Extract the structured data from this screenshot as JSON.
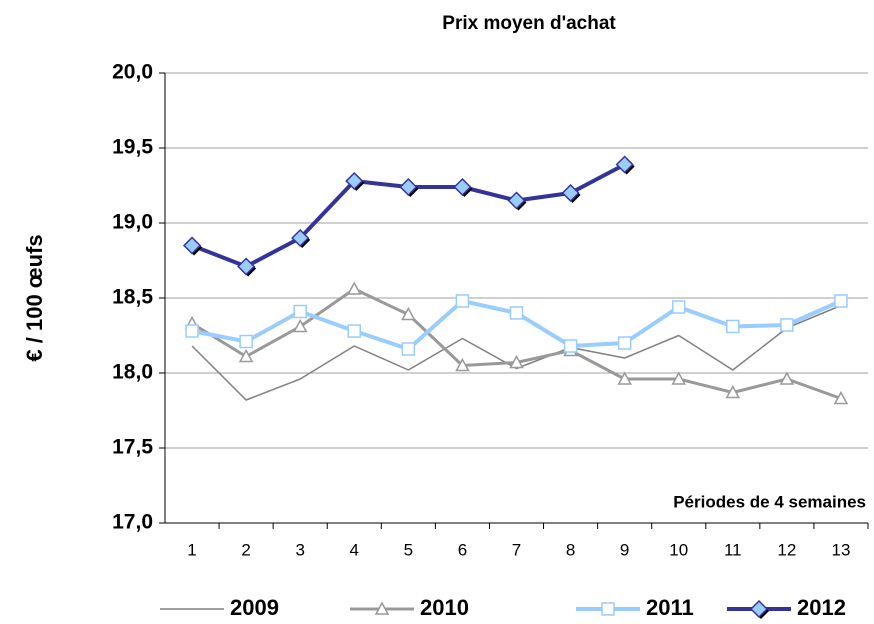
{
  "chart_data": {
    "type": "line",
    "title": "Prix moyen d'achat",
    "y_label": "€ / 100 œufs",
    "annotation": "Périodes de 4 semaines",
    "categories": [
      "1",
      "2",
      "3",
      "4",
      "5",
      "6",
      "7",
      "8",
      "9",
      "10",
      "11",
      "12",
      "13"
    ],
    "series": [
      {
        "name": "2009",
        "color": "#808080",
        "width": 1.5,
        "marker": "none",
        "values": [
          18.18,
          17.82,
          17.96,
          18.18,
          18.02,
          18.23,
          18.03,
          18.17,
          18.1,
          18.25,
          18.02,
          18.3,
          18.45
        ]
      },
      {
        "name": "2010",
        "color": "#999999",
        "width": 3,
        "marker": "triangle",
        "values": [
          18.33,
          18.11,
          18.31,
          18.56,
          18.39,
          18.05,
          18.07,
          18.15,
          17.96,
          17.96,
          17.87,
          17.96,
          17.83
        ]
      },
      {
        "name": "2011",
        "color": "#99ccff",
        "width": 4,
        "marker": "square",
        "values": [
          18.28,
          18.21,
          18.41,
          18.28,
          18.16,
          18.48,
          18.4,
          18.18,
          18.2,
          18.44,
          18.31,
          18.32,
          18.48
        ]
      },
      {
        "name": "2012",
        "color": "#333399",
        "width": 4,
        "marker": "diamond",
        "values": [
          18.85,
          18.71,
          18.9,
          19.28,
          19.24,
          19.24,
          19.15,
          19.2,
          19.39,
          null,
          null,
          null,
          null
        ]
      }
    ],
    "ylim": [
      17.0,
      20.0
    ],
    "yticks": [
      {
        "value": 17.0,
        "label": "17,0"
      },
      {
        "value": 17.5,
        "label": "17,5"
      },
      {
        "value": 18.0,
        "label": "18,0"
      },
      {
        "value": 18.5,
        "label": "18,5"
      },
      {
        "value": 19.0,
        "label": "19,0"
      },
      {
        "value": 19.5,
        "label": "19,5"
      },
      {
        "value": 20.0,
        "label": "20,0"
      }
    ],
    "grid": true,
    "legend": "bottom"
  }
}
